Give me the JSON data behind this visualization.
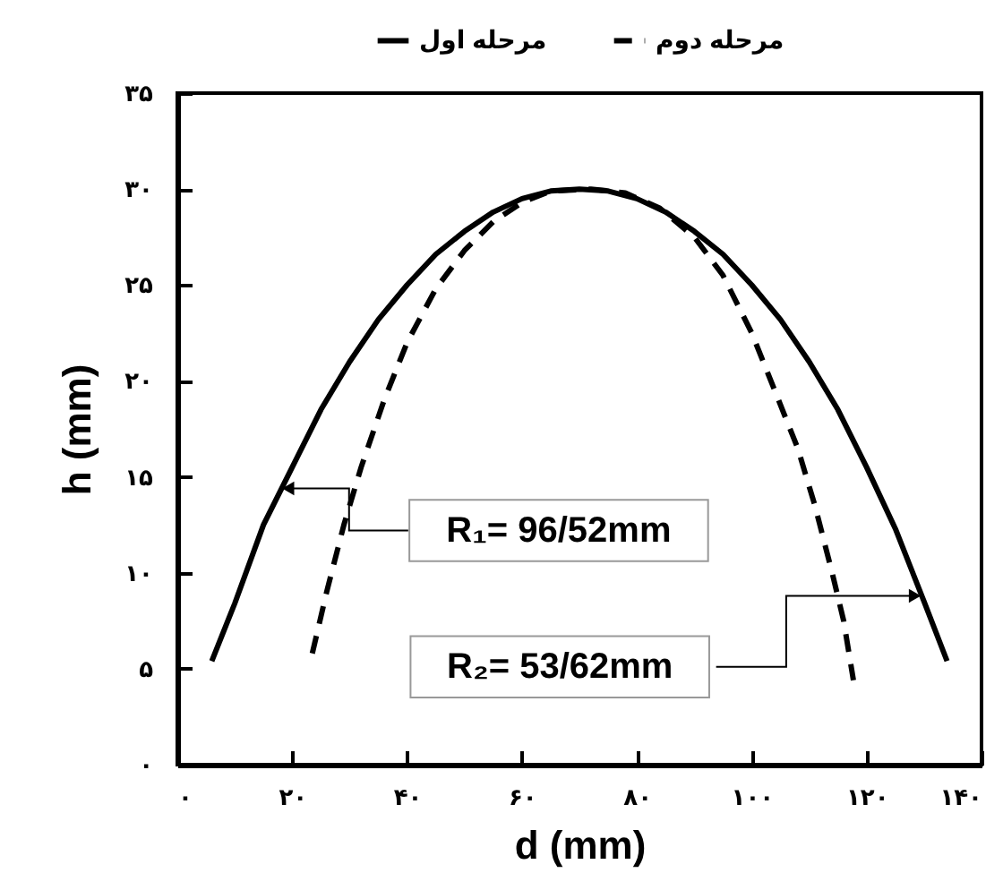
{
  "chart_data": {
    "type": "line",
    "xlabel": "d (mm)",
    "ylabel": "h (mm)",
    "xlim": [
      0,
      140
    ],
    "ylim": [
      0,
      35
    ],
    "xticks": [
      {
        "value": 0,
        "label": "۰"
      },
      {
        "value": 20,
        "label": "۲۰"
      },
      {
        "value": 40,
        "label": "۴۰"
      },
      {
        "value": 60,
        "label": "۶۰"
      },
      {
        "value": 80,
        "label": "۸۰"
      },
      {
        "value": 100,
        "label": "۱۰۰"
      },
      {
        "value": 120,
        "label": "۱۲۰"
      },
      {
        "value": 140,
        "label": "۱۴۰"
      }
    ],
    "yticks": [
      {
        "value": 0,
        "label": "۰"
      },
      {
        "value": 5,
        "label": "۵"
      },
      {
        "value": 10,
        "label": "۱۰"
      },
      {
        "value": 15,
        "label": "۱۵"
      },
      {
        "value": 20,
        "label": "۲۰"
      },
      {
        "value": 25,
        "label": "۲۵"
      },
      {
        "value": 30,
        "label": "۳۰"
      },
      {
        "value": 35,
        "label": "۳۵"
      }
    ],
    "legend": "top",
    "series": [
      {
        "name": "مرحله اول",
        "color": "#000000",
        "line_style": "solid",
        "x": [
          6,
          10,
          15,
          20,
          25,
          30,
          35,
          40,
          45,
          50,
          55,
          60,
          65,
          70,
          75,
          80,
          85,
          90,
          95,
          100,
          105,
          110,
          115,
          120,
          125,
          130,
          134
        ],
        "values": [
          5.4,
          8.4,
          12.5,
          15.5,
          18.5,
          21.0,
          23.2,
          25.0,
          26.6,
          27.8,
          28.8,
          29.5,
          29.9,
          30,
          29.9,
          29.5,
          28.8,
          27.8,
          26.6,
          25.0,
          23.2,
          21.0,
          18.5,
          15.5,
          12.3,
          8.5,
          5.4
        ]
      },
      {
        "name": "مرحله دوم",
        "color": "#000000",
        "line_style": "dashed",
        "x": [
          23.5,
          26,
          29,
          32,
          36,
          40,
          45,
          50,
          55,
          60,
          65,
          72,
          78,
          84,
          90,
          95,
          100,
          104,
          108,
          111,
          114,
          116,
          117.7
        ],
        "values": [
          5.8,
          9,
          12.5,
          15.5,
          19,
          22,
          24.8,
          26.8,
          28.3,
          29.3,
          29.9,
          30,
          29.8,
          29,
          27.5,
          25.5,
          22.5,
          19.5,
          16.5,
          13.5,
          10,
          7.5,
          4.4
        ]
      }
    ],
    "annotations": [
      {
        "text": "R₁= 96/52mm",
        "x": 19.3,
        "y": 14.4
      },
      {
        "text": "R₂= 53/62mm",
        "x": 128.4,
        "y": 8.8
      }
    ]
  }
}
